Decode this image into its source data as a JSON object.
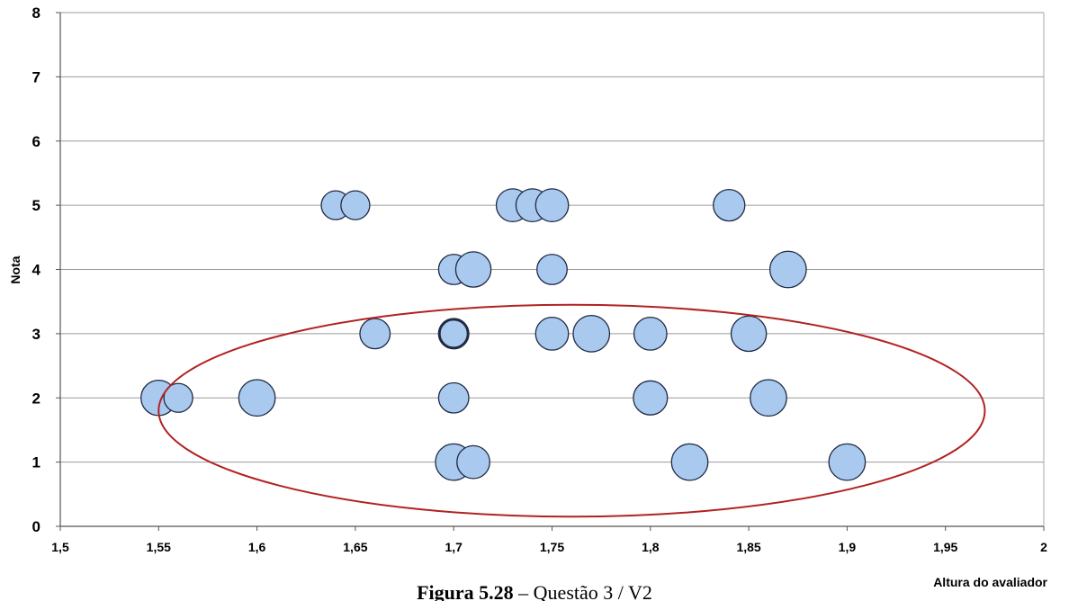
{
  "chart_data": {
    "type": "bubble",
    "xlabel": "Altura do avaliador",
    "ylabel": "Nota",
    "xlim": [
      1.5,
      2
    ],
    "ylim": [
      0,
      8
    ],
    "x_ticks": [
      "1,5",
      "1,55",
      "1,6",
      "1,65",
      "1,7",
      "1,75",
      "1,8",
      "1,85",
      "1,9",
      "1,95",
      "2"
    ],
    "y_ticks": [
      "0",
      "1",
      "2",
      "3",
      "4",
      "5",
      "6",
      "7",
      "8"
    ],
    "grid": "horizontal",
    "points": [
      {
        "x": 1.64,
        "y": 5,
        "size": 1
      },
      {
        "x": 1.65,
        "y": 5,
        "size": 1
      },
      {
        "x": 1.73,
        "y": 5,
        "size": 1.3
      },
      {
        "x": 1.74,
        "y": 5,
        "size": 1.3
      },
      {
        "x": 1.75,
        "y": 5,
        "size": 1.3
      },
      {
        "x": 1.84,
        "y": 5,
        "size": 1.2
      },
      {
        "x": 1.7,
        "y": 4,
        "size": 1.1
      },
      {
        "x": 1.71,
        "y": 4,
        "size": 1.5
      },
      {
        "x": 1.75,
        "y": 4,
        "size": 1.1
      },
      {
        "x": 1.87,
        "y": 4,
        "size": 1.6
      },
      {
        "x": 1.66,
        "y": 3,
        "size": 1.1
      },
      {
        "x": 1.7,
        "y": 3,
        "size": 1.0,
        "outlined": true
      },
      {
        "x": 1.75,
        "y": 3,
        "size": 1.3
      },
      {
        "x": 1.77,
        "y": 3,
        "size": 1.6
      },
      {
        "x": 1.8,
        "y": 3,
        "size": 1.3
      },
      {
        "x": 1.85,
        "y": 3,
        "size": 1.5
      },
      {
        "x": 1.55,
        "y": 2,
        "size": 1.5
      },
      {
        "x": 1.56,
        "y": 2,
        "size": 1.0
      },
      {
        "x": 1.6,
        "y": 2,
        "size": 1.6
      },
      {
        "x": 1.7,
        "y": 2,
        "size": 1.1
      },
      {
        "x": 1.8,
        "y": 2,
        "size": 1.4
      },
      {
        "x": 1.86,
        "y": 2,
        "size": 1.6
      },
      {
        "x": 1.7,
        "y": 1,
        "size": 1.6
      },
      {
        "x": 1.71,
        "y": 1,
        "size": 1.3
      },
      {
        "x": 1.82,
        "y": 1,
        "size": 1.6
      },
      {
        "x": 1.9,
        "y": 1,
        "size": 1.6
      }
    ],
    "highlight_ellipse": {
      "cx": 1.76,
      "cy": 1.8,
      "rx": 0.21,
      "ry": 1.65,
      "color": "#b22222"
    },
    "bubble_fill": "#a9c9ee",
    "bubble_stroke": "#1f2a44"
  },
  "caption": {
    "label": "Figura 5.28",
    "separator": " – ",
    "text": "Questão 3 / V2"
  }
}
